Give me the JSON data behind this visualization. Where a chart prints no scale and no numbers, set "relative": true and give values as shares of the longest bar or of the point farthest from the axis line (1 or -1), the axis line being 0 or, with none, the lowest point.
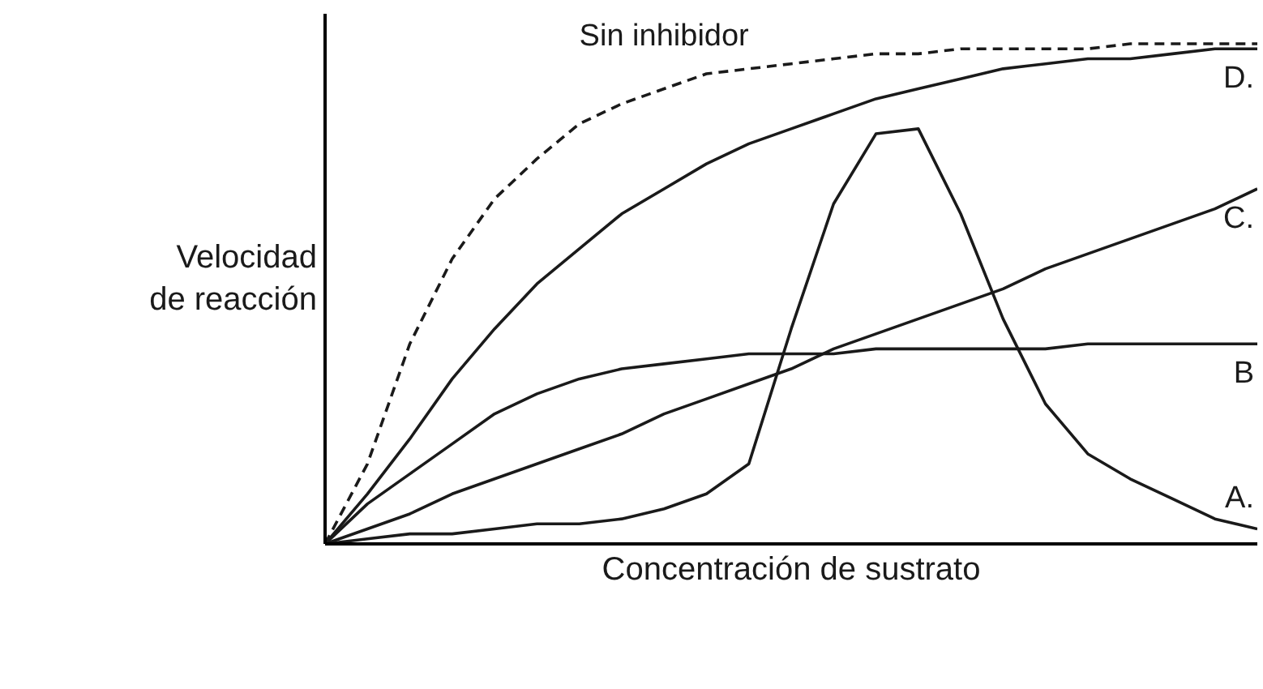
{
  "chart_data": {
    "type": "line",
    "relative": true,
    "xlabel": "Concentración de sustrato",
    "ylabel": "Velocidad\nde reacción",
    "legend": false,
    "grid": false,
    "categories": [
      null,
      null,
      null,
      null,
      null,
      null,
      null,
      null,
      null,
      null,
      null,
      null,
      null,
      null,
      null,
      null,
      null,
      null,
      null,
      null,
      null,
      null,
      null
    ],
    "series": [
      {
        "name": "Sin inhibidor",
        "color": "#1a1a1a",
        "line_style": "dashed",
        "values": [
          0,
          0.16,
          0.4,
          0.57,
          0.69,
          0.77,
          0.84,
          0.88,
          0.91,
          0.94,
          0.95,
          0.96,
          0.97,
          0.98,
          0.98,
          0.99,
          0.99,
          0.99,
          0.99,
          1.0,
          1.0,
          1.0,
          1.0
        ]
      },
      {
        "name": "D.",
        "color": "#1a1a1a",
        "values": [
          0,
          0.1,
          0.21,
          0.33,
          0.43,
          0.52,
          0.59,
          0.66,
          0.71,
          0.76,
          0.8,
          0.83,
          0.86,
          0.89,
          0.91,
          0.93,
          0.95,
          0.96,
          0.97,
          0.97,
          0.98,
          0.99,
          0.99
        ]
      },
      {
        "name": "C.",
        "color": "#1a1a1a",
        "values": [
          0,
          0.03,
          0.06,
          0.1,
          0.13,
          0.16,
          0.19,
          0.22,
          0.26,
          0.29,
          0.32,
          0.35,
          0.39,
          0.42,
          0.45,
          0.48,
          0.51,
          0.55,
          0.58,
          0.61,
          0.64,
          0.67,
          0.71
        ]
      },
      {
        "name": "B",
        "color": "#1a1a1a",
        "values": [
          0,
          0.08,
          0.14,
          0.2,
          0.26,
          0.3,
          0.33,
          0.35,
          0.36,
          0.37,
          0.38,
          0.38,
          0.38,
          0.39,
          0.39,
          0.39,
          0.39,
          0.39,
          0.4,
          0.4,
          0.4,
          0.4,
          0.4
        ]
      },
      {
        "name": "A.",
        "color": "#1a1a1a",
        "values": [
          0,
          0.01,
          0.02,
          0.02,
          0.03,
          0.04,
          0.04,
          0.05,
          0.07,
          0.1,
          0.16,
          0.43,
          0.68,
          0.82,
          0.83,
          0.66,
          0.45,
          0.28,
          0.18,
          0.13,
          0.09,
          0.05,
          0.03
        ]
      }
    ]
  }
}
